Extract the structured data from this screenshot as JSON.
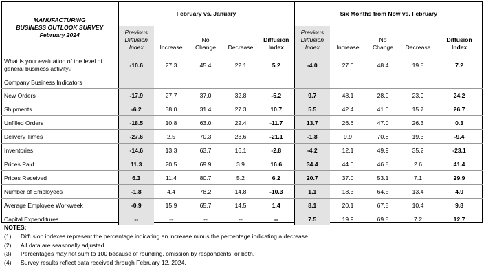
{
  "title_lines": [
    "MANUFACTURING",
    "BUSINESS OUTLOOK SURVEY",
    "February 2024"
  ],
  "groups": [
    "February vs. January",
    "Six Months from Now vs. February"
  ],
  "columns": [
    {
      "l1": "Previous",
      "l2": "Diffusion",
      "l3": "Index"
    },
    {
      "l1": "",
      "l2": "",
      "l3": "Increase"
    },
    {
      "l1": "",
      "l2": "No",
      "l3": "Change"
    },
    {
      "l1": "",
      "l2": "",
      "l3": "Decrease"
    },
    {
      "l1": "",
      "l2": "Diffusion",
      "l3": "Index"
    }
  ],
  "question": "What is your evaluation of the level of general business activity?",
  "question_values": [
    "-10.6",
    "27.3",
    "45.4",
    "22.1",
    "5.2",
    "-4.0",
    "27.0",
    "48.4",
    "19.8",
    "7.2"
  ],
  "section_label": "Company Business Indicators",
  "rows": [
    {
      "label": "New Orders",
      "v": [
        "-17.9",
        "27.7",
        "37.0",
        "32.8",
        "-5.2",
        "9.7",
        "48.1",
        "28.0",
        "23.9",
        "24.2"
      ]
    },
    {
      "label": "Shipments",
      "v": [
        "-6.2",
        "38.0",
        "31.4",
        "27.3",
        "10.7",
        "5.5",
        "42.4",
        "41.0",
        "15.7",
        "26.7"
      ]
    },
    {
      "label": "Unfilled Orders",
      "v": [
        "-18.5",
        "10.8",
        "63.0",
        "22.4",
        "-11.7",
        "13.7",
        "26.6",
        "47.0",
        "26.3",
        "0.3"
      ]
    },
    {
      "label": "Delivery Times",
      "v": [
        "-27.6",
        "2.5",
        "70.3",
        "23.6",
        "-21.1",
        "-1.8",
        "9.9",
        "70.8",
        "19.3",
        "-9.4"
      ]
    },
    {
      "label": "Inventories",
      "v": [
        "-14.6",
        "13.3",
        "63.7",
        "16.1",
        "-2.8",
        "-4.2",
        "12.1",
        "49.9",
        "35.2",
        "-23.1"
      ]
    },
    {
      "label": "Prices Paid",
      "v": [
        "11.3",
        "20.5",
        "69.9",
        "3.9",
        "16.6",
        "34.4",
        "44.0",
        "46.8",
        "2.6",
        "41.4"
      ]
    },
    {
      "label": "Prices Received",
      "v": [
        "6.3",
        "11.4",
        "80.7",
        "5.2",
        "6.2",
        "20.7",
        "37.0",
        "53.1",
        "7.1",
        "29.9"
      ]
    },
    {
      "label": "Number of Employees",
      "v": [
        "-1.8",
        "4.4",
        "78.2",
        "14.8",
        "-10.3",
        "1.1",
        "18.3",
        "64.5",
        "13.4",
        "4.9"
      ]
    },
    {
      "label": "Average Employee Workweek",
      "v": [
        "-0.9",
        "15.9",
        "65.7",
        "14.5",
        "1.4",
        "8.1",
        "20.1",
        "67.5",
        "10.4",
        "9.8"
      ]
    },
    {
      "label": "Capital Expenditures",
      "v": [
        "--",
        "--",
        "--",
        "--",
        "--",
        "7.5",
        "19.9",
        "69.8",
        "7.2",
        "12.7"
      ]
    }
  ],
  "notes_title": "NOTES:",
  "notes": [
    {
      "k": "(1)",
      "t": "Diffusion indexes represent the percentage indicating an increase minus the percentage indicating a decrease."
    },
    {
      "k": "(2)",
      "t": "All data are seasonally adjusted."
    },
    {
      "k": "(3)",
      "t": "Percentages may not sum to 100 because of rounding, omission by respondents, or both."
    },
    {
      "k": "(4)",
      "t": "Survey results reflect data received through February 12, 2024."
    }
  ]
}
